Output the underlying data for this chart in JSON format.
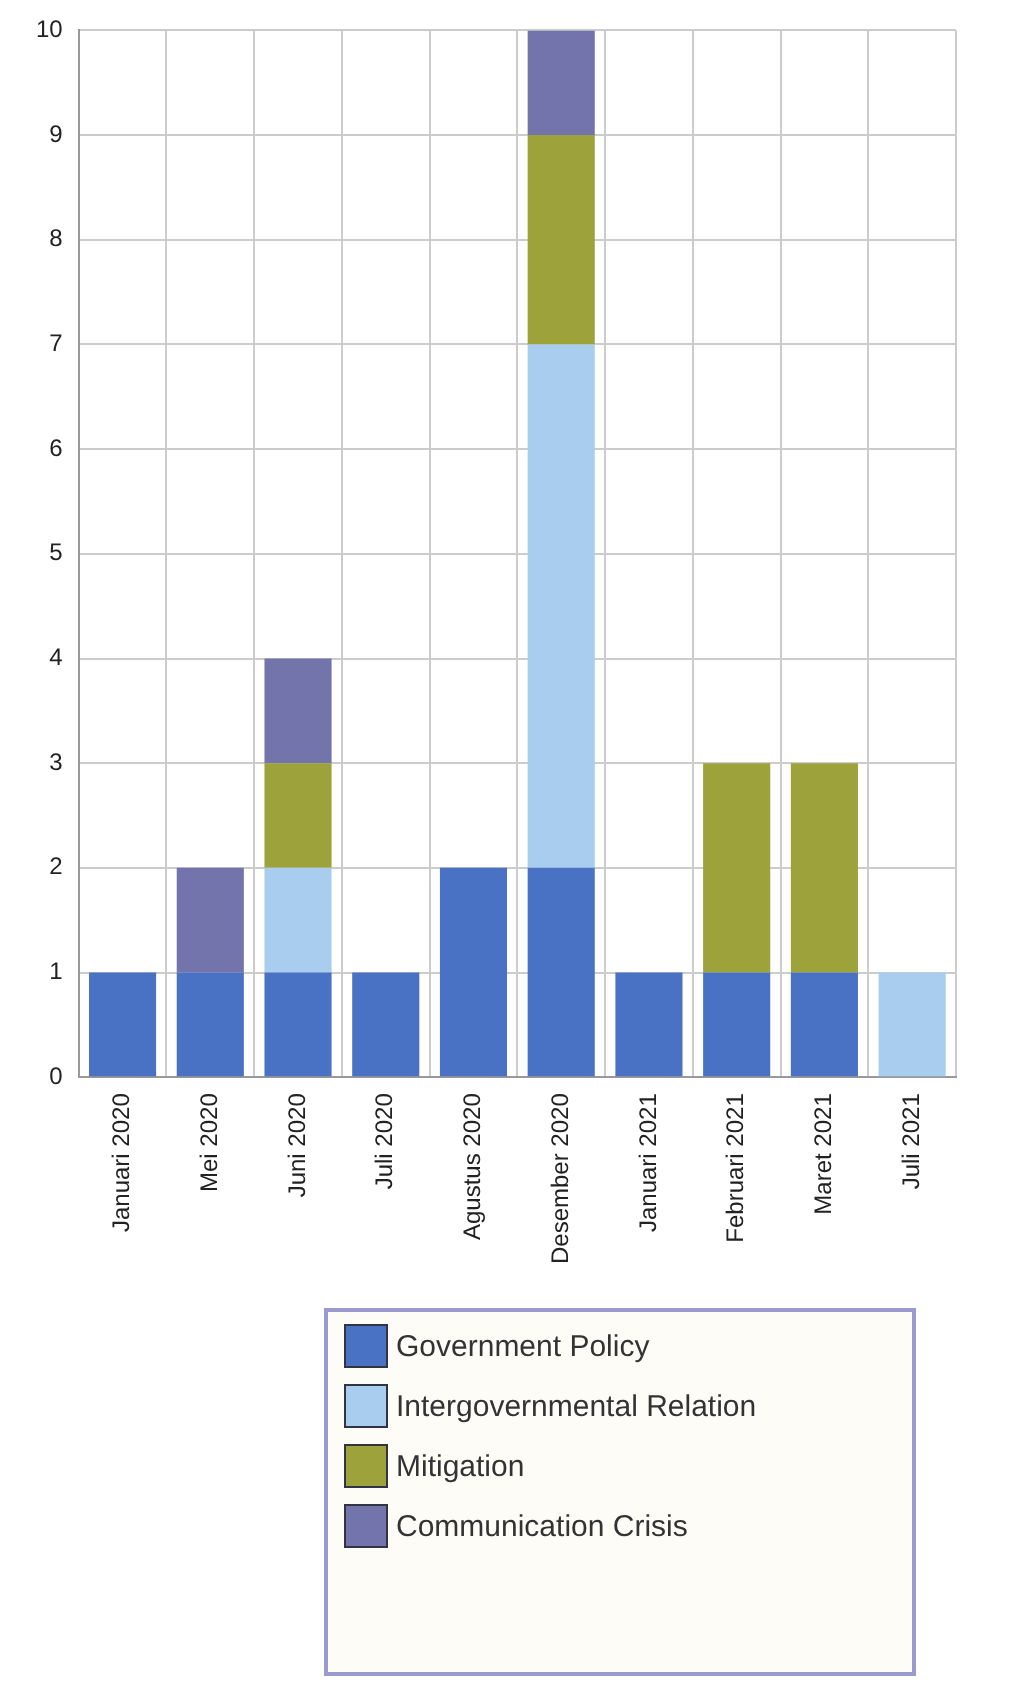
{
  "chart_data": {
    "type": "bar",
    "stacked": true,
    "categories": [
      "Januari 2020",
      "Mei 2020",
      "Juni 2020",
      "Juli 2020",
      "Agustus 2020",
      "Desember 2020",
      "Januari 2021",
      "Februari 2021",
      "Maret 2021",
      "Juli 2021"
    ],
    "series": [
      {
        "name": "Government Policy",
        "color": "#4a72c4",
        "values": [
          1,
          1,
          1,
          1,
          2,
          2,
          1,
          1,
          1,
          0
        ]
      },
      {
        "name": "Intergovernmental Relation",
        "color": "#a9cdee",
        "values": [
          0,
          0,
          1,
          0,
          0,
          5,
          0,
          0,
          0,
          1
        ]
      },
      {
        "name": "Mitigation",
        "color": "#9da23a",
        "values": [
          0,
          0,
          1,
          0,
          0,
          2,
          0,
          2,
          2,
          0
        ]
      },
      {
        "name": "Communication Crisis",
        "color": "#7474ac",
        "values": [
          0,
          1,
          1,
          0,
          0,
          1,
          0,
          0,
          0,
          0
        ]
      }
    ],
    "ylim": [
      0,
      10
    ],
    "yticks": [
      0,
      1,
      2,
      3,
      4,
      5,
      6,
      7,
      8,
      9,
      10
    ],
    "grid": true,
    "legend": "bottom"
  }
}
